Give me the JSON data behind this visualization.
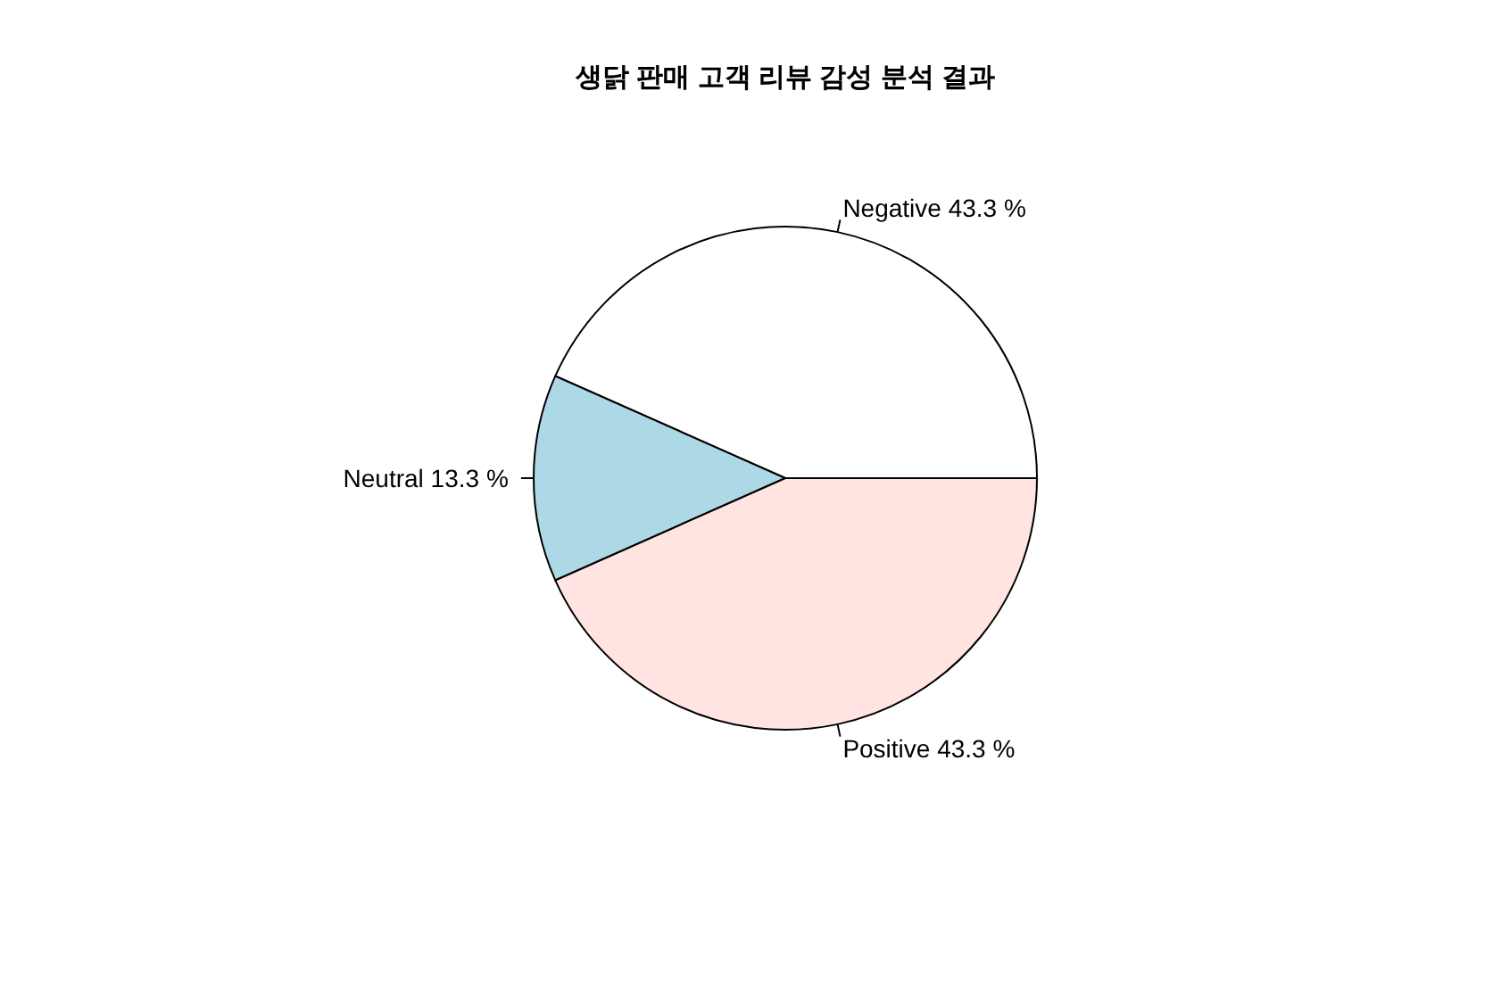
{
  "chart_data": {
    "type": "pie",
    "title": "생닭 판매 고객 리뷰 감성 분석 결과",
    "categories": [
      "Negative",
      "Neutral",
      "Positive"
    ],
    "values": [
      43.3,
      13.3,
      43.3
    ],
    "value_labels": [
      "43.3 %",
      "13.3 %",
      "43.3 %"
    ],
    "colors": [
      "#ffffff",
      "#add8e6",
      "#ffe4e1"
    ]
  }
}
